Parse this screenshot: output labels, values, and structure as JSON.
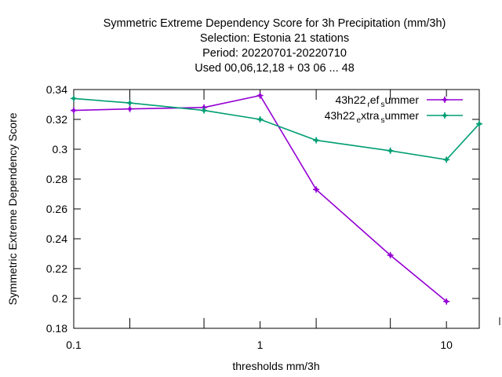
{
  "chart_data": {
    "type": "line",
    "title_lines": [
      "Symmetric Extreme Dependency Score  for 3h Precipitation (mm/3h)",
      "Selection: Estonia      21 stations",
      "Period: 20220701-20220710",
      "Used  00,06,12,18  + 03 06 ... 48"
    ],
    "xlabel": "thresholds mm/3h",
    "ylabel": "Symmetric Extreme Dependency Score",
    "x_scale": "log",
    "xlim": [
      0.1,
      15
    ],
    "ylim": [
      0.18,
      0.34
    ],
    "x_ticks": [
      {
        "value": 0.1,
        "label": "0.1"
      },
      {
        "value": 1,
        "label": "1"
      },
      {
        "value": 10,
        "label": "10"
      }
    ],
    "x_minor_ticks": [
      0.2,
      0.5,
      2,
      5,
      15
    ],
    "y_ticks": [
      {
        "value": 0.18,
        "label": "0.18"
      },
      {
        "value": 0.2,
        "label": "0.2"
      },
      {
        "value": 0.22,
        "label": "0.22"
      },
      {
        "value": 0.24,
        "label": "0.24"
      },
      {
        "value": 0.26,
        "label": "0.26"
      },
      {
        "value": 0.28,
        "label": "0.28"
      },
      {
        "value": 0.3,
        "label": "0.3"
      },
      {
        "value": 0.32,
        "label": "0.32"
      },
      {
        "value": 0.34,
        "label": "0.34"
      }
    ],
    "grid": false,
    "legend_position": "top-right",
    "series": [
      {
        "legend": {
          "main": "43h22",
          "sub1": "r",
          "mid": "ef",
          "sub2": "s",
          "tail": "ummer"
        },
        "color": "#9400d3",
        "x": [
          0.1,
          0.2,
          0.5,
          1,
          2,
          5,
          10
        ],
        "y": [
          0.326,
          0.327,
          0.328,
          0.336,
          0.273,
          0.229,
          0.198
        ]
      },
      {
        "legend": {
          "main": "43h22",
          "sub1": "e",
          "mid": "xtra",
          "sub2": "s",
          "tail": "ummer"
        },
        "color": "#009e73",
        "x": [
          0.1,
          0.2,
          0.5,
          1,
          2,
          5,
          10,
          15
        ],
        "y": [
          0.334,
          0.331,
          0.326,
          0.32,
          0.306,
          0.299,
          0.293,
          0.317
        ]
      }
    ]
  }
}
